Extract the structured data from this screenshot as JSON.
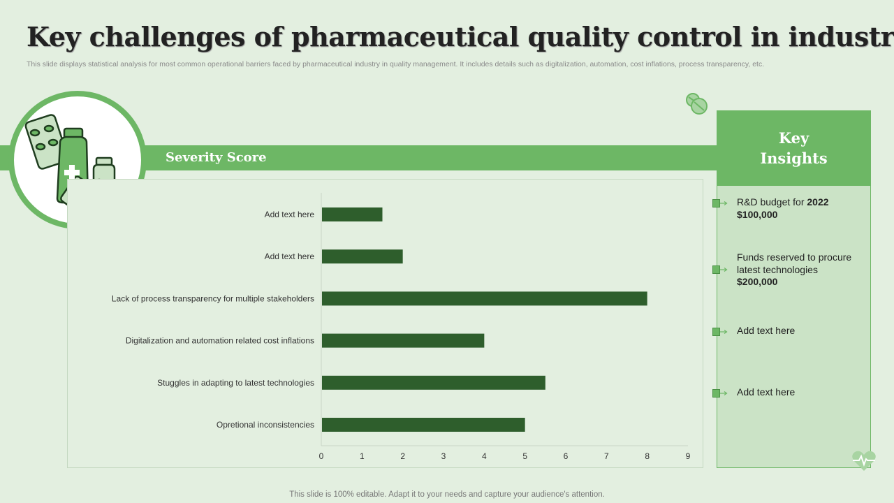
{
  "title": "Key challenges of pharmaceutical quality control in industry",
  "subtitle": "This slide displays statistical analysis for most common operational barriers faced by pharmaceutical industry in quality management. It includes details such as digitalization, automation, cost inflations, process transparency, etc.",
  "band_label": "Severity Score",
  "chart_data": {
    "type": "bar",
    "orientation": "horizontal",
    "categories": [
      "Add text here",
      "Add text here",
      "Lack of process transparency for multiple stakeholders",
      "Digitalization and automation related cost inflations",
      "Stuggles in adapting to latest technologies",
      "Opretional inconsistencies"
    ],
    "values": [
      1.5,
      2,
      8,
      4,
      5.5,
      5
    ],
    "xlim": [
      0,
      9
    ],
    "xticks": [
      "0",
      "1",
      "2",
      "3",
      "4",
      "5",
      "6",
      "7",
      "8",
      "9"
    ],
    "title": "Severity Score",
    "bar_color": "#2e5e2c"
  },
  "insights": {
    "heading_line1": "Key",
    "heading_line2": "Insights",
    "items": [
      {
        "text": "R&D budget for ",
        "bold": "2022 $100,000"
      },
      {
        "text": "Funds reserved to procure latest technologies ",
        "bold": "$200,000"
      },
      {
        "text": "Add text here",
        "bold": ""
      },
      {
        "text": "Add text here",
        "bold": ""
      }
    ]
  },
  "footer": "This slide is 100% editable. Adapt it to your needs and capture your audience's attention.",
  "colors": {
    "accent": "#6db765",
    "dark_green": "#2e5e2c",
    "background": "#e3efe0",
    "panel": "#cbe3c6"
  },
  "icons": {
    "hero": "medicine-bottle-pills-icon",
    "top": "pills-icon",
    "bottom": "heartbeat-icon"
  }
}
